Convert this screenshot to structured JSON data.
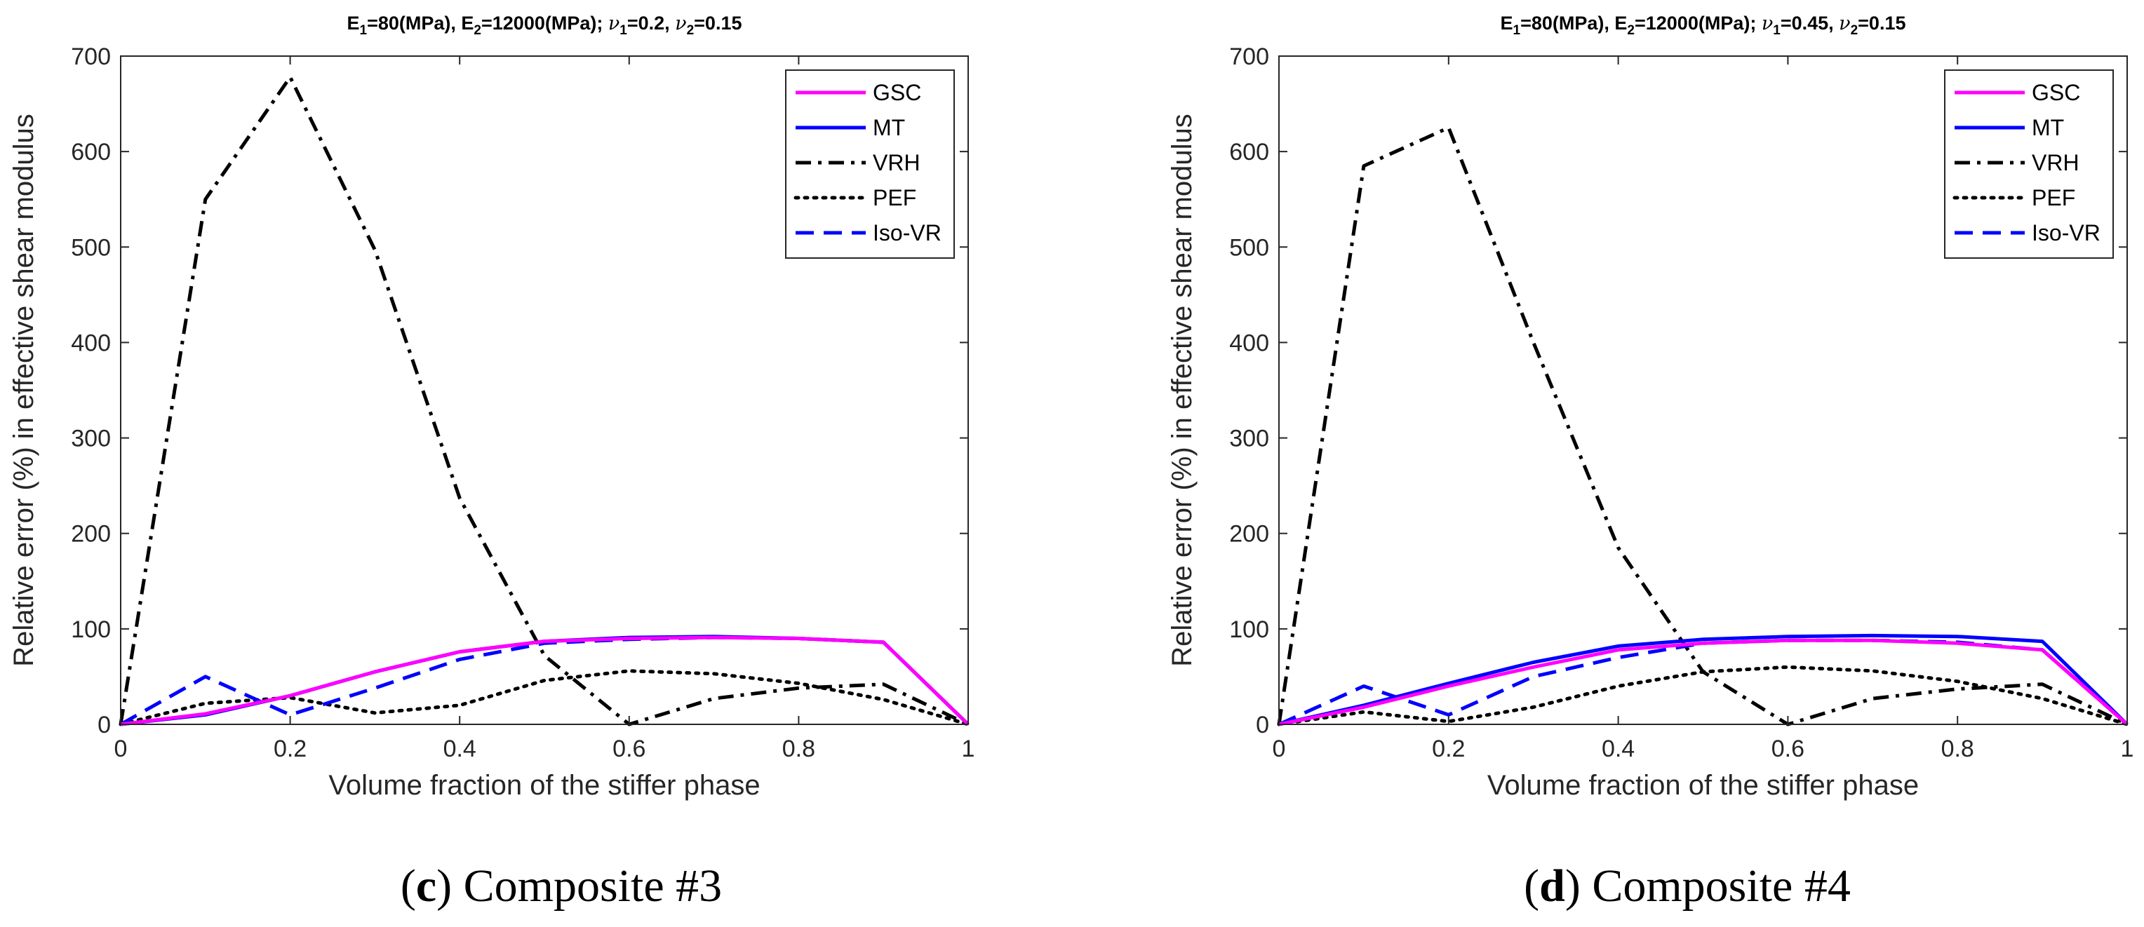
{
  "chart_data": [
    {
      "type": "line",
      "title_parts": {
        "E1": "80",
        "E2": "12000",
        "unit": "(MPa)",
        "nu1": "0.2",
        "nu2": "0.15"
      },
      "xlabel": "Volume fraction of the stiffer phase",
      "ylabel": "Relative error (%) in effective shear modulus",
      "xlim": [
        0,
        1
      ],
      "ylim": [
        0,
        700
      ],
      "xticks": [
        "0",
        "0.2",
        "0.4",
        "0.6",
        "0.8",
        "1"
      ],
      "yticks": [
        "0",
        "100",
        "200",
        "300",
        "400",
        "500",
        "600",
        "700"
      ],
      "legend_position": "top-right",
      "x": [
        0,
        0.1,
        0.2,
        0.3,
        0.4,
        0.5,
        0.6,
        0.7,
        0.8,
        0.9,
        1.0
      ],
      "series": [
        {
          "name": "GSC",
          "color": "#ff00ff",
          "style": "solid",
          "values": [
            0,
            11,
            30,
            55,
            76,
            87,
            90,
            91,
            90,
            86,
            0
          ]
        },
        {
          "name": "MT",
          "color": "#0000ff",
          "style": "solid",
          "values": [
            0,
            10,
            30,
            55,
            76,
            87,
            91,
            92,
            90,
            86,
            0
          ]
        },
        {
          "name": "VRH",
          "color": "#000000",
          "style": "dashdot",
          "values": [
            0,
            550,
            678,
            497,
            237,
            72,
            0,
            27,
            38,
            42,
            0
          ]
        },
        {
          "name": "PEF",
          "color": "#000000",
          "style": "dotted",
          "values": [
            0,
            22,
            28,
            12,
            20,
            46,
            56,
            53,
            43,
            26,
            0
          ]
        },
        {
          "name": "Iso-VR",
          "color": "#0000ff",
          "style": "dashed",
          "values": [
            0,
            50,
            10,
            38,
            68,
            85,
            89,
            91,
            90,
            86,
            0
          ]
        }
      ],
      "caption": {
        "letter": "c",
        "text": " Composite #3"
      }
    },
    {
      "type": "line",
      "title_parts": {
        "E1": "80",
        "E2": "12000",
        "unit": "(MPa)",
        "nu1": "0.45",
        "nu2": "0.15"
      },
      "xlabel": "Volume fraction of the stiffer phase",
      "ylabel": "Relative error (%) in effective shear modulus",
      "xlim": [
        0,
        1
      ],
      "ylim": [
        0,
        700
      ],
      "xticks": [
        "0",
        "0.2",
        "0.4",
        "0.6",
        "0.8",
        "1"
      ],
      "yticks": [
        "0",
        "100",
        "200",
        "300",
        "400",
        "500",
        "600",
        "700"
      ],
      "legend_position": "top-right",
      "x": [
        0,
        0.1,
        0.2,
        0.3,
        0.4,
        0.5,
        0.6,
        0.7,
        0.8,
        0.9,
        1.0
      ],
      "series": [
        {
          "name": "GSC",
          "color": "#ff00ff",
          "style": "solid",
          "values": [
            0,
            18,
            40,
            60,
            78,
            85,
            88,
            88,
            85,
            78,
            0
          ]
        },
        {
          "name": "MT",
          "color": "#0000ff",
          "style": "solid",
          "values": [
            0,
            20,
            43,
            65,
            82,
            89,
            92,
            93,
            92,
            87,
            0
          ]
        },
        {
          "name": "VRH",
          "color": "#000000",
          "style": "dashdot",
          "values": [
            0,
            585,
            625,
            400,
            185,
            55,
            0,
            27,
            37,
            42,
            0
          ]
        },
        {
          "name": "PEF",
          "color": "#000000",
          "style": "dotted",
          "values": [
            0,
            13,
            3,
            18,
            40,
            55,
            60,
            56,
            45,
            27,
            0
          ]
        },
        {
          "name": "Iso-VR",
          "color": "#0000ff",
          "style": "dashed",
          "values": [
            0,
            40,
            10,
            50,
            70,
            85,
            88,
            88,
            86,
            78,
            0
          ]
        }
      ],
      "caption": {
        "letter": "d",
        "text": " Composite #4"
      }
    }
  ]
}
